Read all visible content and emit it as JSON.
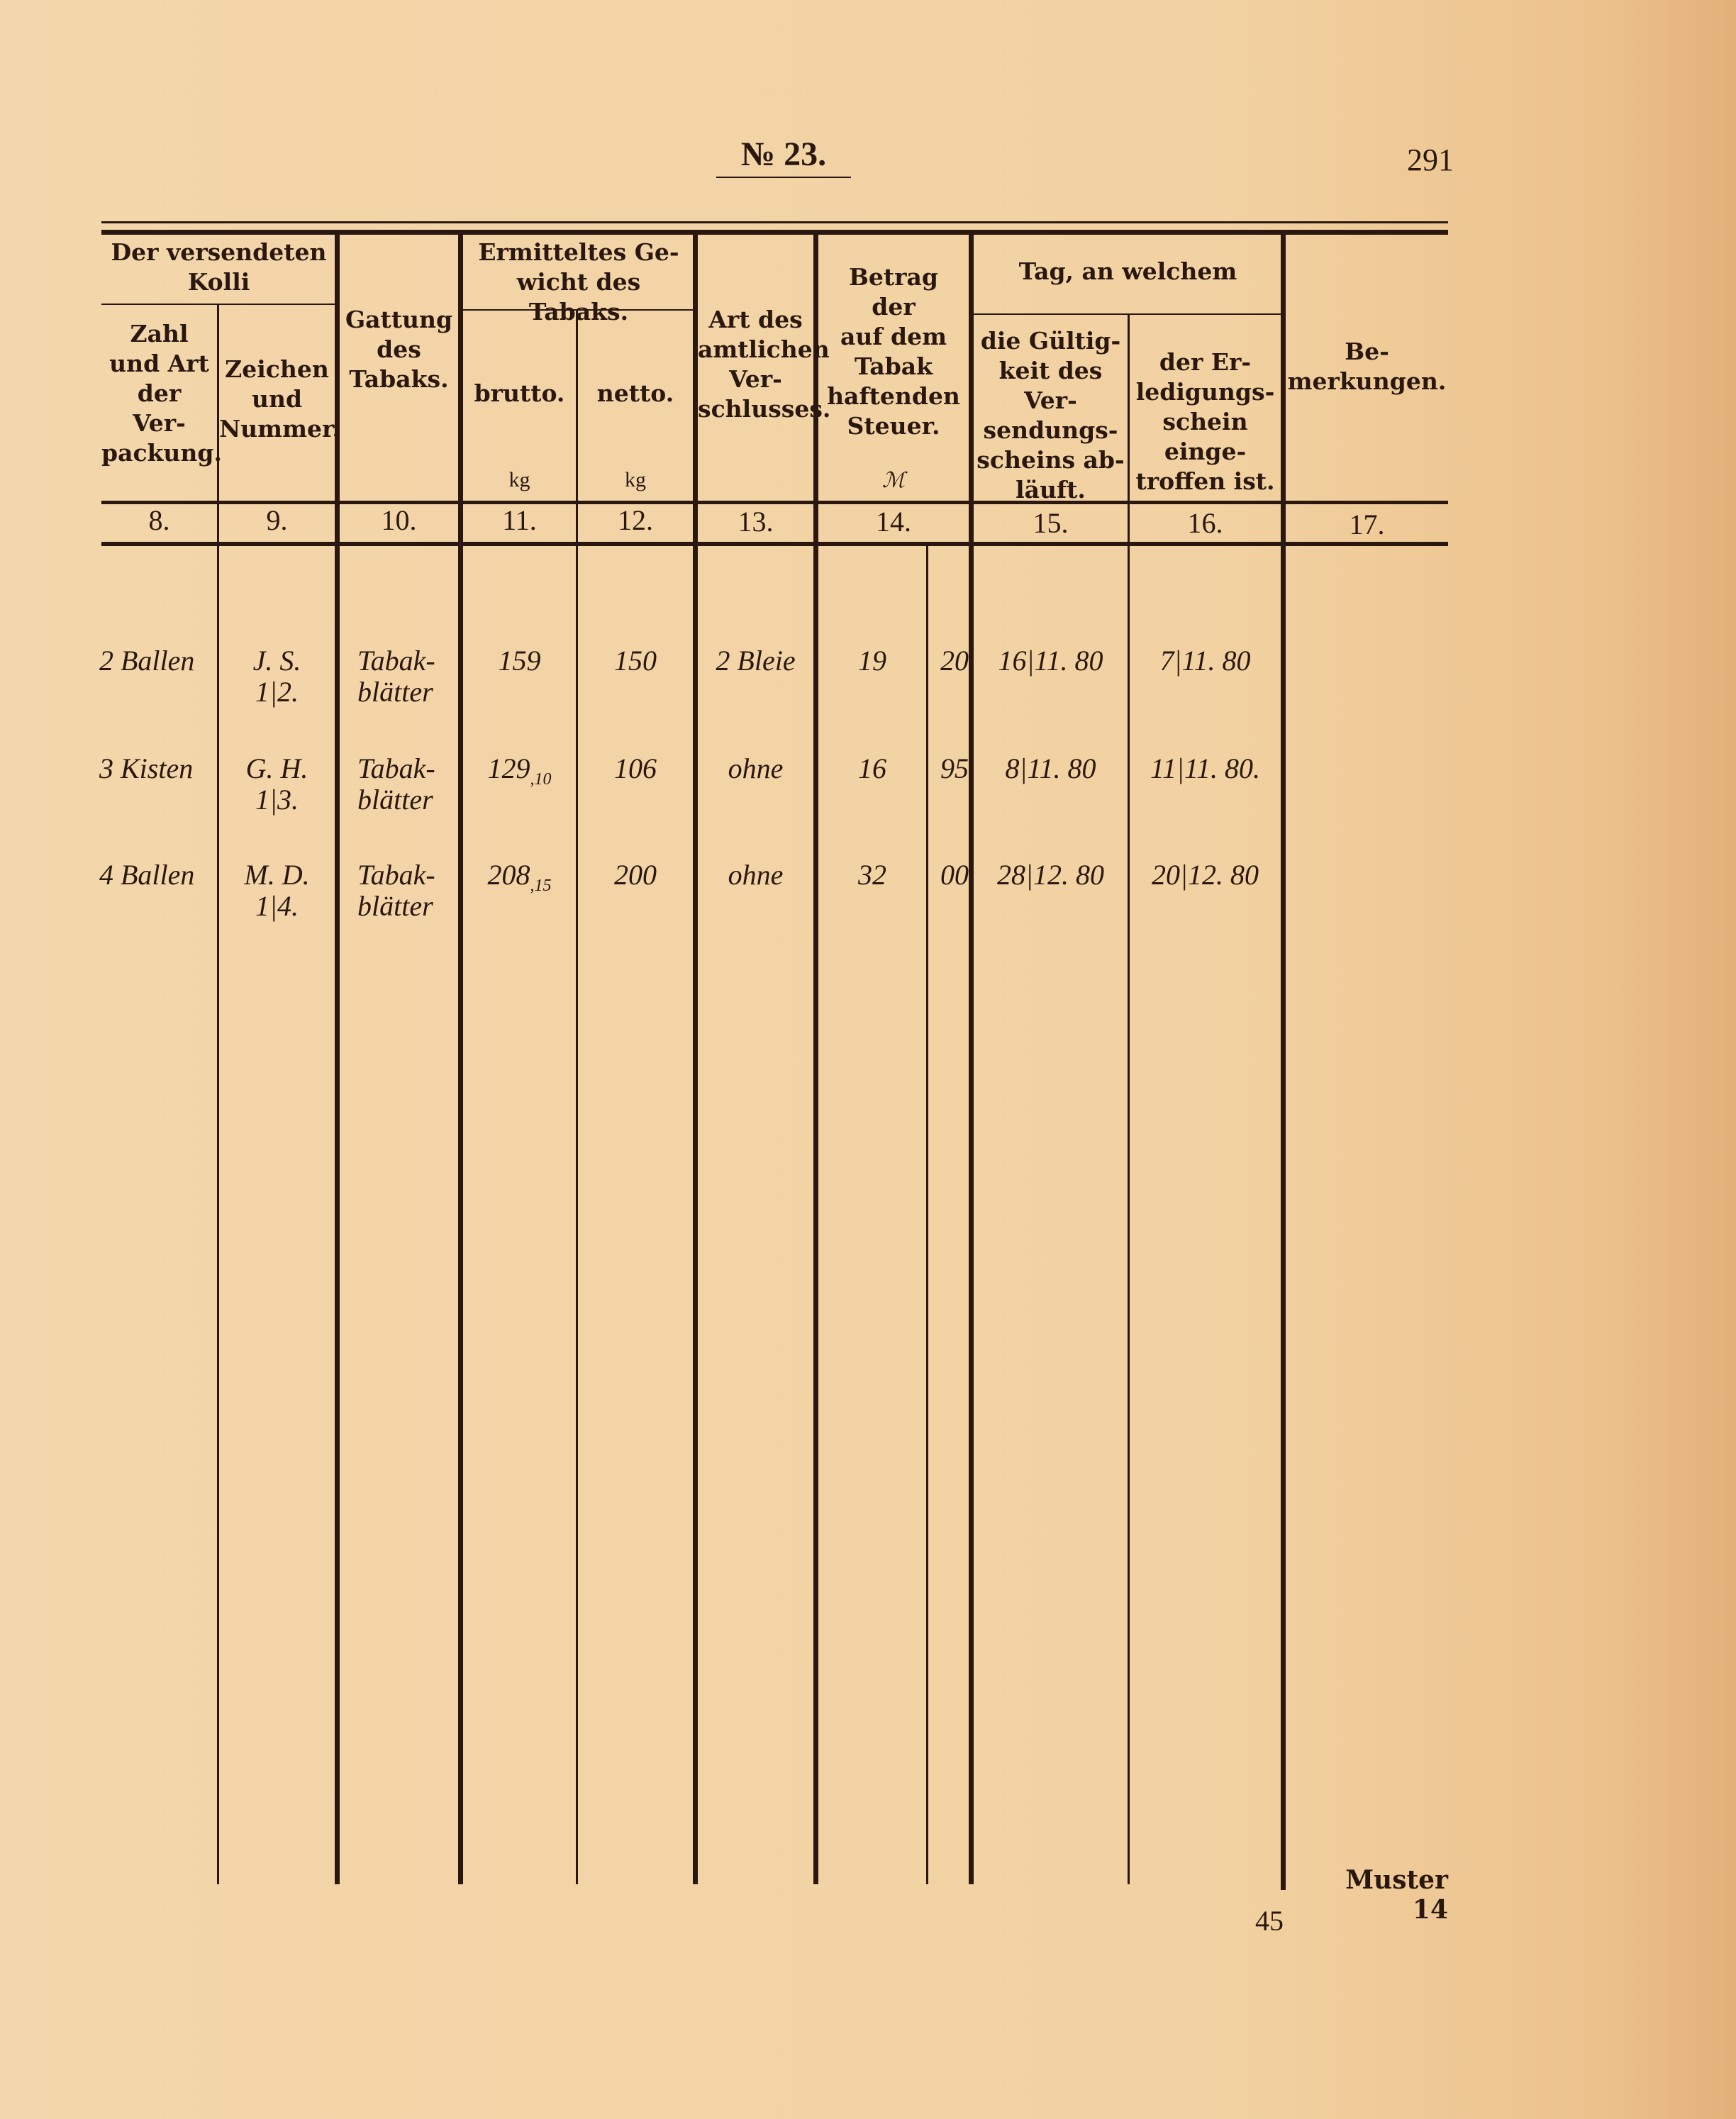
{
  "page": {
    "title": "№ 23.",
    "page_number": "291",
    "footer_form": "Muster 14",
    "footer_sheet": "45"
  },
  "table": {
    "group_headers": {
      "kolli": "Der versendeten\nKolli",
      "gewicht": "Ermitteltes Ge-\nwicht des Tabaks.",
      "tag": "Tag, an welchem"
    },
    "columns": [
      {
        "number": "8.",
        "label": "Zahl\nund Art\nder\nVer-\npackung.",
        "unit": ""
      },
      {
        "number": "9.",
        "label": "Zeichen\nund\nNummer.",
        "unit": ""
      },
      {
        "number": "10.",
        "label": "Gattung\ndes\nTabaks.",
        "unit": ""
      },
      {
        "number": "11.",
        "label": "brutto.",
        "unit": "kg"
      },
      {
        "number": "12.",
        "label": "netto.",
        "unit": "kg"
      },
      {
        "number": "13.",
        "label": "Art des\namtlichen\nVer-\nschlusses.",
        "unit": ""
      },
      {
        "number": "14.",
        "label": "Betrag\nder\nauf dem\nTabak\nhaftenden\nSteuer.",
        "unit": "ℳ"
      },
      {
        "number": "15.",
        "label": "die Gültig-\nkeit des Ver-\nsendungs-\nscheins ab-\nläuft.",
        "unit": ""
      },
      {
        "number": "16.",
        "label": "der Er-\nledigungs-\nschein einge-\ntroffen ist.",
        "unit": ""
      },
      {
        "number": "17.",
        "label": "Be-\nmerkungen.",
        "unit": ""
      }
    ],
    "rows": [
      {
        "packung": "2 Ballen",
        "zeichen": "J. S.\n1|2.",
        "gattung": "Tabak-\nblätter",
        "brutto": "159",
        "brutto_frac": "",
        "netto": "150",
        "verschluss": "2 Bleie",
        "steuer_mark": "19",
        "steuer_pf": "20",
        "gueltig": "16|11. 80",
        "erledigt": "7|11. 80",
        "bemerkungen": ""
      },
      {
        "packung": "3 Kisten",
        "zeichen": "G. H.\n1|3.",
        "gattung": "Tabak-\nblätter",
        "brutto": "129",
        "brutto_frac": ",10",
        "netto": "106",
        "verschluss": "ohne",
        "steuer_mark": "16",
        "steuer_pf": "95",
        "gueltig": "8|11. 80",
        "erledigt": "11|11. 80.",
        "bemerkungen": ""
      },
      {
        "packung": "4 Ballen",
        "zeichen": "M. D.\n1|4.",
        "gattung": "Tabak-\nblätter",
        "brutto": "208",
        "brutto_frac": ",15",
        "netto": "200",
        "verschluss": "ohne",
        "steuer_mark": "32",
        "steuer_pf": "00",
        "gueltig": "28|12. 80",
        "erledigt": "20|12. 80",
        "bemerkungen": ""
      }
    ]
  }
}
